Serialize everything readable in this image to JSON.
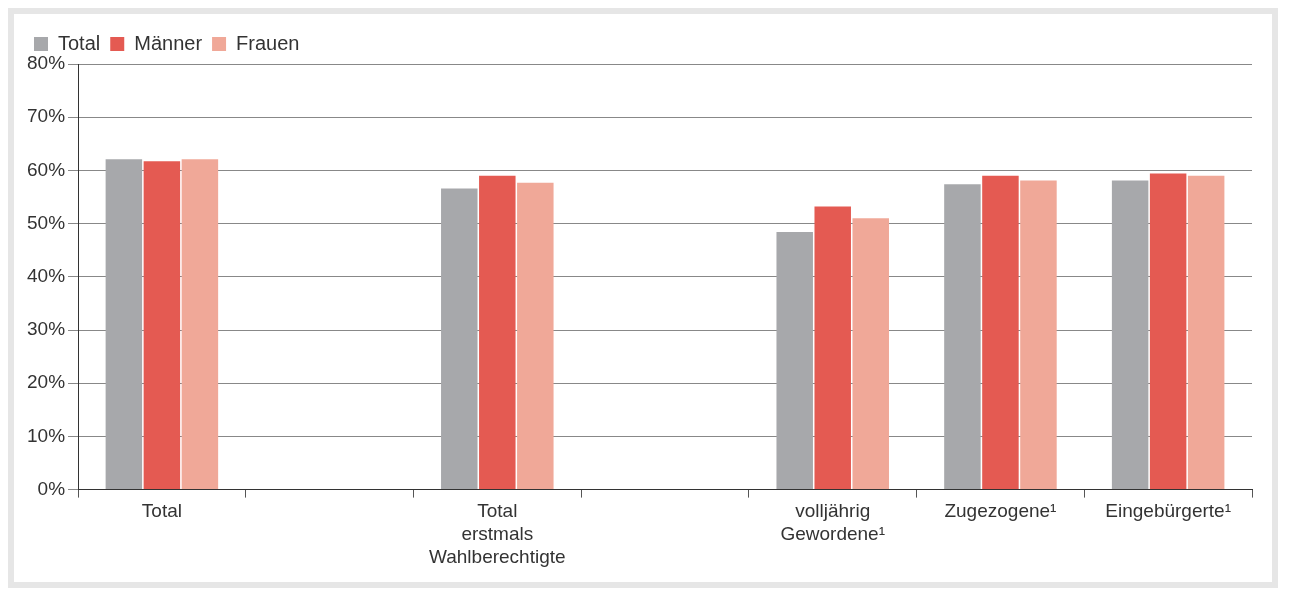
{
  "chart_data": {
    "type": "bar",
    "categories": [
      "Total",
      null,
      "Total erstmals Wahlberechtigte",
      null,
      "volljährig Gewordene¹",
      "Zugezogene¹",
      "Eingebürgerte¹"
    ],
    "series": [
      {
        "name": "Total",
        "color": "#a7a8ab",
        "values": [
          62.1,
          null,
          56.6,
          null,
          48.4,
          57.4,
          58.1
        ]
      },
      {
        "name": "Männer",
        "color": "#e45a52",
        "values": [
          61.7,
          null,
          59,
          null,
          53.2,
          59,
          59.4
        ]
      },
      {
        "name": "Frauen",
        "color": "#f0a898",
        "values": [
          62.1,
          null,
          57.7,
          null,
          51,
          58.1,
          59
        ]
      }
    ],
    "ylim": [
      0,
      80
    ],
    "yticks": [
      {
        "value": 0,
        "label": "0%"
      },
      {
        "value": 10,
        "label": "10%"
      },
      {
        "value": 20,
        "label": "20%"
      },
      {
        "value": 30,
        "label": "30%"
      },
      {
        "value": 40,
        "label": "40%"
      },
      {
        "value": 50,
        "label": "50%"
      },
      {
        "value": 60,
        "label": "60%"
      },
      {
        "value": 70,
        "label": "70%"
      },
      {
        "value": 80,
        "label": "80%"
      }
    ],
    "grid": "y",
    "legend": "top left"
  }
}
